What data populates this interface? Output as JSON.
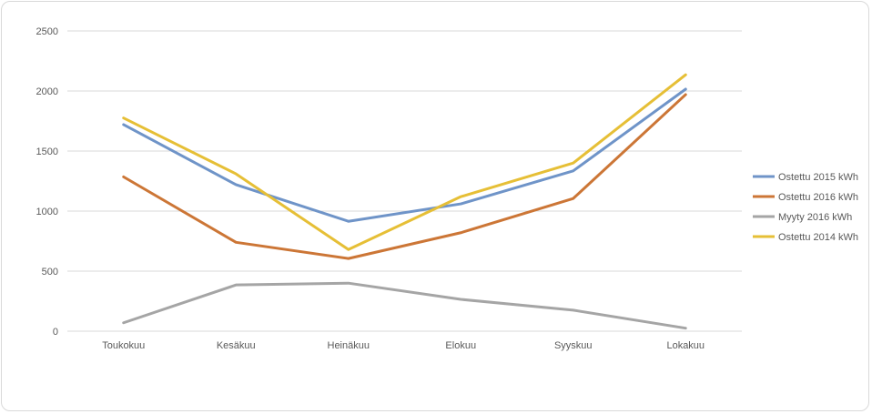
{
  "chart_data": {
    "type": "line",
    "title": "",
    "xlabel": "",
    "ylabel": "",
    "categories": [
      "Toukokuu",
      "Kesäkuu",
      "Heinäkuu",
      "Elokuu",
      "Syyskuu",
      "Lokakuu"
    ],
    "ylim": [
      0,
      2500
    ],
    "yticks": [
      0,
      500,
      1000,
      1500,
      2000,
      2500
    ],
    "grid": true,
    "legend_position": "right",
    "series": [
      {
        "name": "Ostettu 2015 kWh",
        "color": "#6f94c8",
        "values": [
          1720,
          1220,
          915,
          1060,
          1335,
          2015
        ]
      },
      {
        "name": "Ostettu 2016 kWh",
        "color": "#cc7636",
        "values": [
          1285,
          740,
          605,
          820,
          1105,
          1970
        ]
      },
      {
        "name": "Myyty 2016 kWh",
        "color": "#a5a5a5",
        "values": [
          70,
          385,
          400,
          265,
          175,
          25
        ]
      },
      {
        "name": "Ostettu 2014 kWh",
        "color": "#e6bf36",
        "values": [
          1775,
          1310,
          680,
          1120,
          1400,
          2135
        ]
      }
    ]
  }
}
